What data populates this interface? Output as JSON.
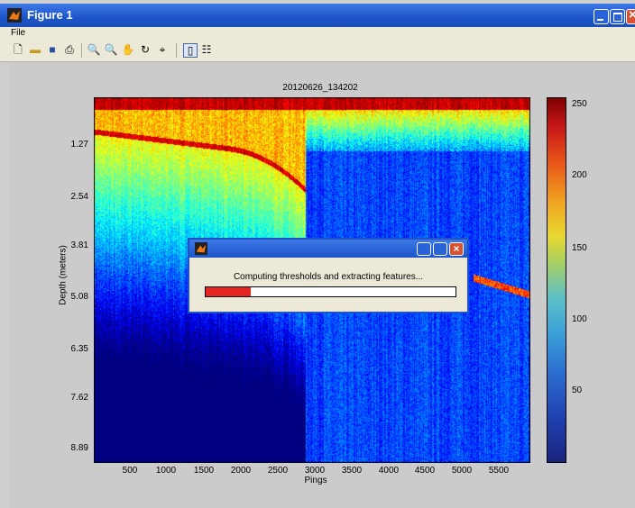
{
  "window": {
    "title": "Figure 1"
  },
  "menu": {
    "file": "File"
  },
  "toolbar": {
    "icons": [
      "new-figure-icon",
      "open-icon",
      "save-icon",
      "print-icon",
      "zoom-in-icon",
      "zoom-out-icon",
      "pan-icon",
      "rotate-icon",
      "data-cursor-icon",
      "colorbar-icon",
      "legend-icon"
    ]
  },
  "plot": {
    "title": "20120626_134202",
    "xlabel": "Pings",
    "ylabel": "Depth (meters)",
    "yticks": [
      "1.27",
      "2.54",
      "3.81",
      "5.08",
      "6.35",
      "7.62",
      "8.89"
    ],
    "xticks": [
      "500",
      "1000",
      "1500",
      "2000",
      "2500",
      "3000",
      "3500",
      "4000",
      "4500",
      "5000",
      "5500"
    ],
    "colorbar_ticks": [
      "250",
      "200",
      "150",
      "100",
      "50"
    ]
  },
  "dialog": {
    "message": "Computing thresholds and extracting features...",
    "progress": 0.18
  },
  "colors": {
    "titlebar": "#1d55c9",
    "progress": "#e52521"
  }
}
